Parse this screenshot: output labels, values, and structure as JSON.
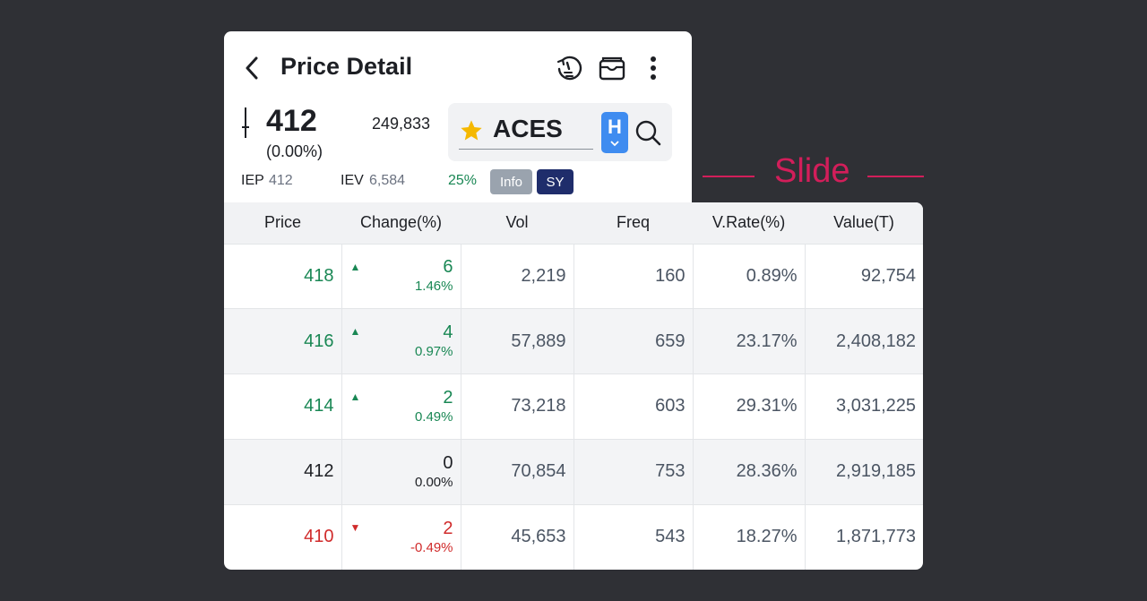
{
  "header": {
    "title": "Price Detail",
    "icons": [
      "back-arrow-icon",
      "history-timer-icon",
      "wallet-icon",
      "more-vertical-icon"
    ]
  },
  "quote": {
    "price": "412",
    "change_pct": "(0.00%)",
    "volume": "249,833",
    "ticker": "ACES",
    "board": "H",
    "iep_label": "IEP",
    "iep_value": "412",
    "iev_label": "IEV",
    "iev_value": "6,584",
    "pct": "25%",
    "badge_info": "Info",
    "badge_sy": "SY"
  },
  "annotation": {
    "slide_label": "Slide"
  },
  "table": {
    "columns": [
      "Price",
      "Change(%)",
      "Vol",
      "Freq",
      "V.Rate(%)",
      "Value(T)"
    ],
    "rows": [
      {
        "price": "418",
        "change": "6",
        "change_pct": "1.46%",
        "dir": "up",
        "vol": "2,219",
        "freq": "160",
        "vrate": "0.89%",
        "value": "92,754"
      },
      {
        "price": "416",
        "change": "4",
        "change_pct": "0.97%",
        "dir": "up",
        "vol": "57,889",
        "freq": "659",
        "vrate": "23.17%",
        "value": "2,408,182"
      },
      {
        "price": "414",
        "change": "2",
        "change_pct": "0.49%",
        "dir": "up",
        "vol": "73,218",
        "freq": "603",
        "vrate": "29.31%",
        "value": "3,031,225"
      },
      {
        "price": "412",
        "change": "0",
        "change_pct": "0.00%",
        "dir": "flat",
        "vol": "70,854",
        "freq": "753",
        "vrate": "28.36%",
        "value": "2,919,185"
      },
      {
        "price": "410",
        "change": "2",
        "change_pct": "-0.49%",
        "dir": "down",
        "vol": "45,653",
        "freq": "543",
        "vrate": "18.27%",
        "value": "1,871,773"
      }
    ]
  },
  "colors": {
    "up": "#198754",
    "down": "#d02b2b",
    "accent": "#3f8cf0",
    "slide": "#d21e5a"
  }
}
